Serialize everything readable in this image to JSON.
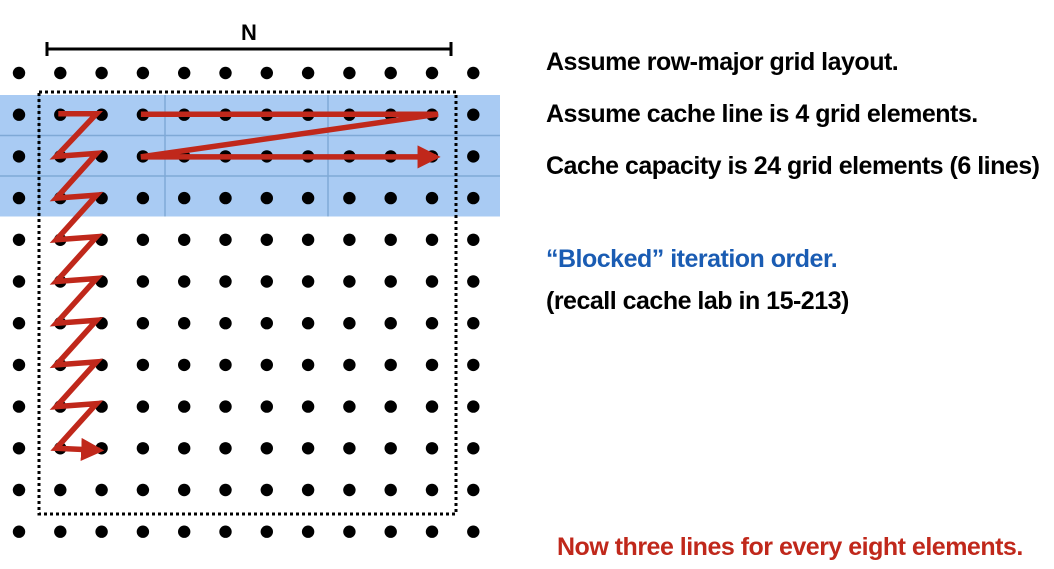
{
  "diagram": {
    "n_label": "N",
    "grid": {
      "rows": 12,
      "cols": 12
    },
    "cache_rows_highlighted": 3,
    "colors": {
      "dot": "#000000",
      "cache_band": "#a9cbf3",
      "cache_band_divider": "#7fa9d6",
      "arrow": "#c0281b",
      "bracket": "#000000",
      "block_outline": "#000000"
    }
  },
  "text": {
    "line_a": "Assume row-major grid layout.",
    "line_b": "Assume cache line is 4 grid elements.",
    "line_c": "Cache capacity is 24 grid elements (6 lines)",
    "heading": "“Blocked” iteration order.",
    "note": "(recall cache lab in 15-213)",
    "footer": "Now three lines for every eight elements."
  },
  "colors": {
    "heading": "#1a5cb3",
    "footer": "#c0281b",
    "body_text": "#000000"
  }
}
